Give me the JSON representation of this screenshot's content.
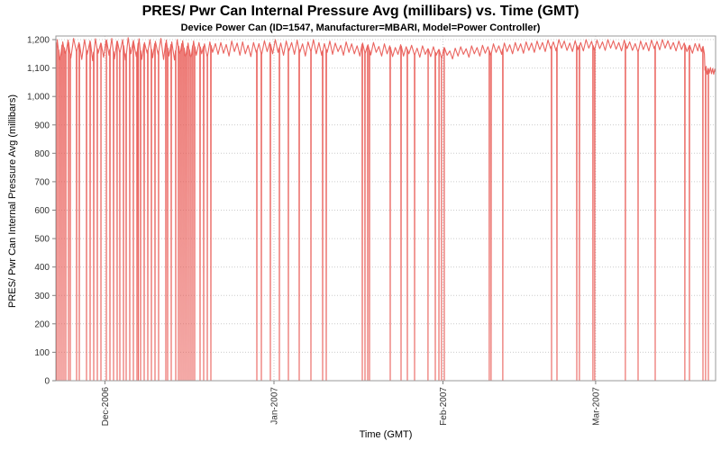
{
  "chart_data": {
    "type": "line",
    "title": "PRES/ Pwr Can Internal Pressure Avg (millibars) vs. Time (GMT)",
    "subtitle": "Device Power Can (ID=1547, Manufacturer=MBARI, Model=Power Controller)",
    "xlabel": "Time (GMT)",
    "ylabel": "PRES/ Pwr Can Internal Pressure Avg (millibars)",
    "ylim": [
      0,
      1213
    ],
    "yticks": [
      0,
      100,
      200,
      300,
      400,
      500,
      600,
      700,
      800,
      900,
      1000,
      1100,
      1200
    ],
    "ytick_labels": [
      "0",
      "100",
      "200",
      "300",
      "400",
      "500",
      "600",
      "700",
      "800",
      "900",
      "1,000",
      "1,100",
      "1,200"
    ],
    "x_axis_span_days": 121,
    "xticks": [
      {
        "day": 9,
        "label": "Dec-2006"
      },
      {
        "day": 40,
        "label": "Jan-2007"
      },
      {
        "day": 71,
        "label": "Feb-2007"
      },
      {
        "day": 99,
        "label": "Mar-2007"
      }
    ],
    "grid": true,
    "legend": "none",
    "series": [
      {
        "name": "PRES/ Pwr Can Internal Pressure Avg",
        "color": "#e8534e",
        "description": "Internal pressure oscillates daily between roughly 1130 and 1205 millibars with frequent momentary telemetry dropouts to 0; near the end the level steps down to ~1080-1105 millibars.",
        "baseline_peaks": [
          1200,
          1192,
          1198,
          1204,
          1190,
          1200,
          1196,
          1203,
          1188,
          1199,
          1204,
          1195,
          1200,
          1207,
          1197,
          1203,
          1190,
          1200,
          1194,
          1204,
          1198,
          1192,
          1200,
          1196,
          1188,
          1195,
          1190,
          1185,
          1192,
          1186,
          1190,
          1183,
          1195,
          1188,
          1192,
          1180,
          1190,
          1186,
          1196,
          1190,
          1200,
          1188,
          1195,
          1190,
          1198,
          1185,
          1192,
          1200,
          1190,
          1186,
          1195,
          1188,
          1180,
          1192,
          1185,
          1178,
          1188,
          1182,
          1190,
          1176,
          1185,
          1178,
          1172,
          1182,
          1175,
          1180,
          1170,
          1178,
          1168,
          1175,
          1165,
          1172,
          1160,
          1170,
          1175,
          1168,
          1178,
          1172,
          1180,
          1175,
          1185,
          1178,
          1188,
          1182,
          1190,
          1185,
          1192,
          1188,
          1195,
          1190,
          1198,
          1192,
          1200,
          1195,
          1188,
          1196,
          1190,
          1200,
          1194,
          1198,
          1192,
          1200,
          1196,
          1190,
          1198,
          1192,
          1186,
          1195,
          1190,
          1198,
          1194,
          1200,
          1196,
          1190,
          1195,
          1188,
          1180,
          1186
        ],
        "baseline_troughs": [
          1128,
          1150,
          1135,
          1158,
          1130,
          1148,
          1126,
          1152,
          1138,
          1145,
          1132,
          1155,
          1128,
          1150,
          1140,
          1130,
          1152,
          1136,
          1148,
          1130,
          1142,
          1128,
          1150,
          1138,
          1132,
          1145,
          1150,
          1140,
          1155,
          1148,
          1152,
          1142,
          1158,
          1145,
          1150,
          1140,
          1155,
          1148,
          1158,
          1150,
          1155,
          1145,
          1160,
          1148,
          1155,
          1142,
          1158,
          1150,
          1145,
          1155,
          1148,
          1158,
          1145,
          1155,
          1150,
          1142,
          1152,
          1146,
          1155,
          1142,
          1150,
          1140,
          1148,
          1142,
          1150,
          1145,
          1138,
          1148,
          1140,
          1145,
          1135,
          1145,
          1132,
          1142,
          1148,
          1138,
          1150,
          1142,
          1152,
          1145,
          1155,
          1148,
          1158,
          1150,
          1160,
          1152,
          1162,
          1155,
          1165,
          1158,
          1168,
          1160,
          1170,
          1162,
          1158,
          1165,
          1160,
          1170,
          1164,
          1168,
          1162,
          1170,
          1166,
          1160,
          1168,
          1162,
          1156,
          1165,
          1160,
          1168,
          1164,
          1170,
          1166,
          1160,
          1165,
          1158,
          1152,
          1160
        ],
        "tail_points": [
          [
            118.0,
            1185
          ],
          [
            118.4,
            1158
          ],
          [
            118.7,
            1176
          ],
          [
            118.95,
            1150
          ],
          [
            119.05,
            1092
          ],
          [
            119.25,
            1106
          ],
          [
            119.45,
            1078
          ],
          [
            119.65,
            1098
          ],
          [
            119.85,
            1082
          ],
          [
            120.05,
            1102
          ],
          [
            120.25,
            1080
          ],
          [
            120.45,
            1098
          ],
          [
            120.65,
            1078
          ],
          [
            120.85,
            1096
          ],
          [
            121.0,
            1085
          ]
        ],
        "dropout_value": 0,
        "dropout_days": [
          0.17,
          0.5,
          0.83,
          1.16,
          1.49,
          1.82,
          2.31,
          2.64,
          3.8,
          4.3,
          5.62,
          6.28,
          6.94,
          7.6,
          8.26,
          9.26,
          9.92,
          10.58,
          11.24,
          11.74,
          12.4,
          12.89,
          13.55,
          14.21,
          14.88,
          15.12,
          15.54,
          16.2,
          16.86,
          17.52,
          18.18,
          18.84,
          20.17,
          20.5,
          21.16,
          21.98,
          22.48,
          22.81,
          23.14,
          23.47,
          23.8,
          24.13,
          24.46,
          24.79,
          25.12,
          25.45,
          26.45,
          27.11,
          27.77,
          28.43,
          36.86,
          37.69,
          39.34,
          41.0,
          42.64,
          44.63,
          46.78,
          48.93,
          49.59,
          56.2,
          56.69,
          57.19,
          57.52,
          61.32,
          63.31,
          64.46,
          65.79,
          68.26,
          69.59,
          70.25,
          70.74,
          71.24,
          79.5,
          79.83,
          81.98,
          90.91,
          91.9,
          95.54,
          96.03,
          98.51,
          98.84,
          104.46,
          106.78,
          109.92,
          115.37,
          116.2,
          118.68,
          119.17,
          119.67
        ]
      }
    ]
  },
  "colors": {
    "background": "#ffffff",
    "grid": "#cccccc",
    "plot_border": "#999999",
    "tick_mark": "#808080",
    "tick_text": "#333333",
    "series": "#e8534e"
  }
}
